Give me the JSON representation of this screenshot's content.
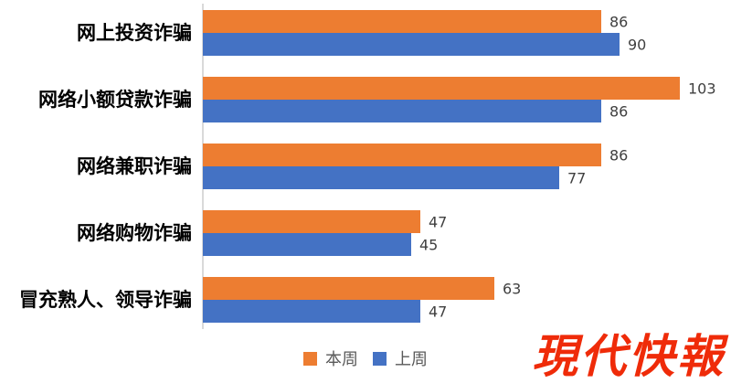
{
  "chart_data": {
    "type": "bar",
    "orientation": "horizontal",
    "title": "",
    "xlabel": "",
    "ylabel": "",
    "categories": [
      "网上投资诈骗",
      "网络小额贷款诈骗",
      "网络兼职诈骗",
      "网络购物诈骗",
      "冒充熟人、领导诈骗"
    ],
    "series": [
      {
        "name": "本周",
        "color": "#ED7D31",
        "values": [
          86,
          103,
          86,
          47,
          63
        ]
      },
      {
        "name": "上周",
        "color": "#4472C4",
        "values": [
          90,
          86,
          77,
          45,
          47
        ]
      }
    ],
    "xlim": [
      0,
      114
    ],
    "grid": false,
    "data_labels": true,
    "legend_position": "bottom-center",
    "axis_line_color": "#D9D9D9",
    "data_label_color": "#404040",
    "legend_text_color": "#595959"
  },
  "watermark": {
    "text": "現代快報",
    "color": "#EF2B09"
  }
}
